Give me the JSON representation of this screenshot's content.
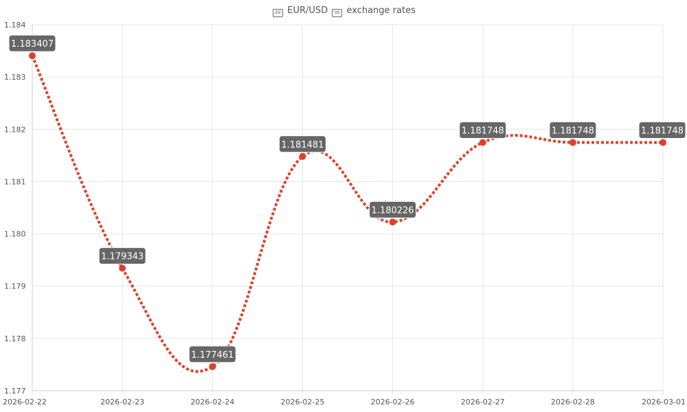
{
  "title": {
    "base": "EUR/USD",
    "quote_icon": "us-flag-icon",
    "base_icon": "eu-flag-icon",
    "suffix": "exchange rates"
  },
  "colors": {
    "line": "#e0402a",
    "point": "#e0402a",
    "label_bg": "#666666",
    "grid": "#e6e6e6",
    "axis_text": "#555555"
  },
  "chart_data": {
    "type": "line",
    "title": "EUR/USD exchange rates",
    "xlabel": "",
    "ylabel": "",
    "categories": [
      "2026-02-22",
      "2026-02-23",
      "2026-02-24",
      "2026-02-25",
      "2026-02-26",
      "2026-02-27",
      "2026-02-28",
      "2026-03-01"
    ],
    "series": [
      {
        "values": [
          1.183407,
          1.179343,
          1.177461,
          1.181481,
          1.180226,
          1.181748,
          1.181748,
          1.181748
        ],
        "labels": [
          "1.183407",
          "1.179343",
          "1.177461",
          "1.181481",
          "1.180226",
          "1.181748",
          "1.181748",
          "1.181748"
        ],
        "line_style": "dotted",
        "smooth": true
      }
    ],
    "ylim": [
      1.177,
      1.184
    ],
    "yticks": [
      "1.177",
      "1.178",
      "1.179",
      "1.180",
      "1.181",
      "1.182",
      "1.183",
      "1.184"
    ],
    "grid": true,
    "legend": "none"
  }
}
